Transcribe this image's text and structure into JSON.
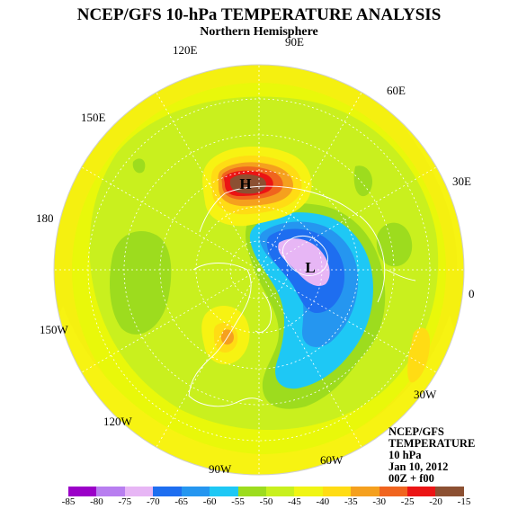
{
  "header": {
    "title": "NCEP/GFS 10-hPa TEMPERATURE ANALYSIS",
    "subtitle": "Northern Hemisphere"
  },
  "map": {
    "background": "#e9f80a",
    "high_label": "H",
    "low_label": "L",
    "longitude_labels": [
      "90E",
      "60E",
      "30E",
      "0",
      "30W",
      "60W",
      "90W",
      "120W",
      "150W",
      "180",
      "150E",
      "120E"
    ]
  },
  "info": {
    "line1": "NCEP/GFS",
    "line2": "TEMPERATURE",
    "line3": "10 hPa",
    "line4": "Jan 10, 2012",
    "line5": "00Z + f00"
  },
  "legend": {
    "colors": [
      "#9b00c8",
      "#b87ef0",
      "#e7b6f5",
      "#1e6ef0",
      "#2596f0",
      "#1ec8f5",
      "#9ddc1e",
      "#c8f01e",
      "#f0f514",
      "#ffdc14",
      "#f5a01e",
      "#f0641e",
      "#eb1414",
      "#8c5032",
      "#808080"
    ],
    "ticks": [
      "-85",
      "-80",
      "-75",
      "-70",
      "-65",
      "-60",
      "-55",
      "-50",
      "-45",
      "-40",
      "-35",
      "-30",
      "-25",
      "-20",
      "-15"
    ]
  }
}
